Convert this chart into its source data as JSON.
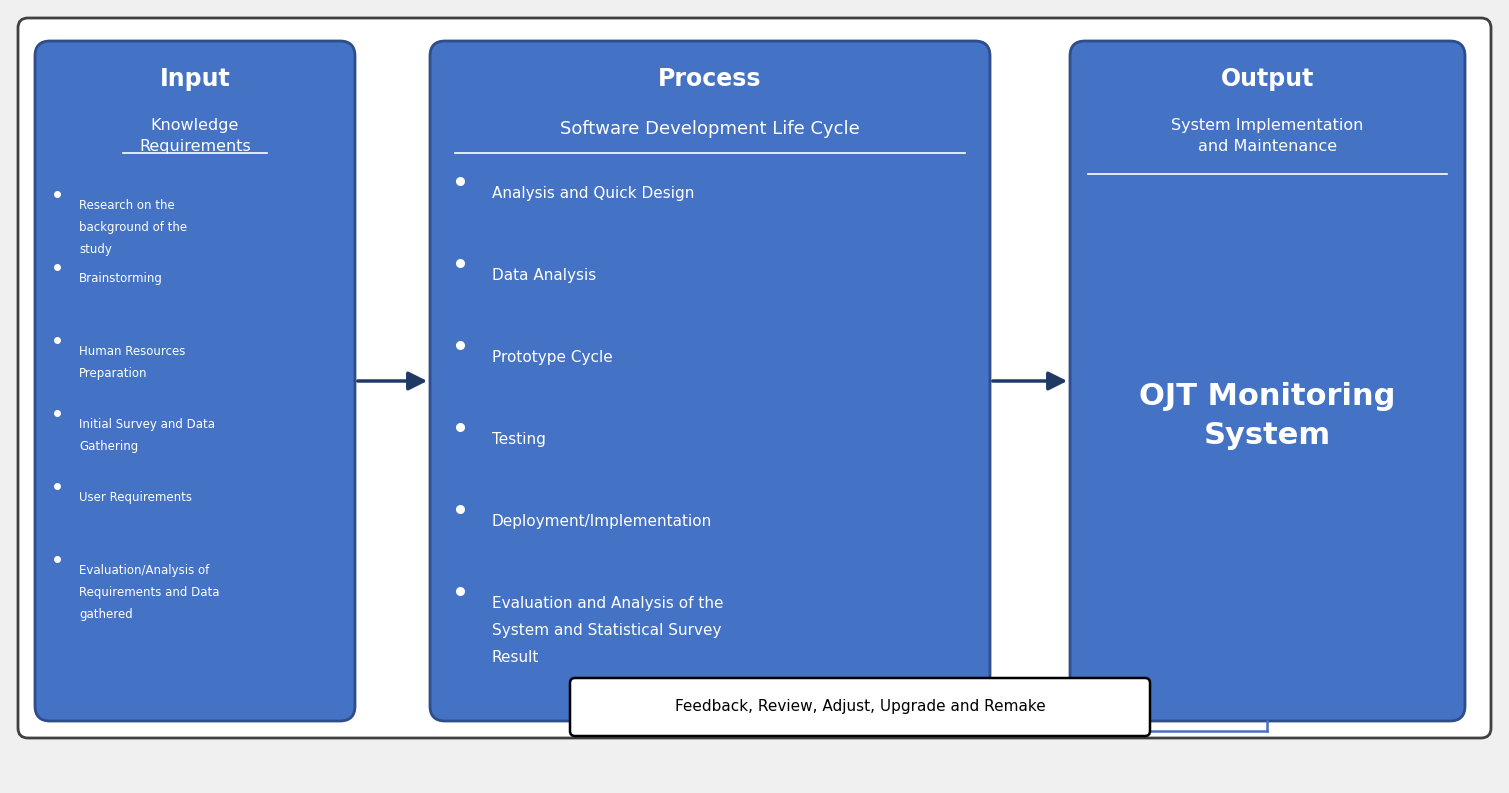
{
  "bg_color": "#f0f0f0",
  "box_color": "#4472c4",
  "box_edge_color": "#2e4d8a",
  "text_color": "#ffffff",
  "arrow_color": "#1f3864",
  "feedback_box_color": "#ffffff",
  "feedback_text_color": "#000000",
  "feedback_line_color": "#4472c4",
  "outer_border_color": "#404040",
  "input_title": "Input",
  "input_subtitle": "Knowledge\nRequirements",
  "input_bullets": [
    "Research on the\nbackground of the\nstudy",
    "Brainstorming",
    "Human Resources\nPreparation",
    "Initial Survey and Data\nGathering",
    "User Requirements",
    "Evaluation/Analysis of\nRequirements and Data\ngathered"
  ],
  "process_title": "Process",
  "process_subtitle": "Software Development Life Cycle",
  "process_bullets": [
    "Analysis and Quick Design",
    "Data Analysis",
    "Prototype Cycle",
    "Testing",
    "Deployment/Implementation",
    "Evaluation and Analysis of the\nSystem and Statistical Survey\nResult"
  ],
  "output_title": "Output",
  "output_subtitle": "System Implementation\nand Maintenance",
  "output_main": "OJT Monitoring\nSystem",
  "feedback_text": "Feedback, Review, Adjust, Upgrade and Remake"
}
